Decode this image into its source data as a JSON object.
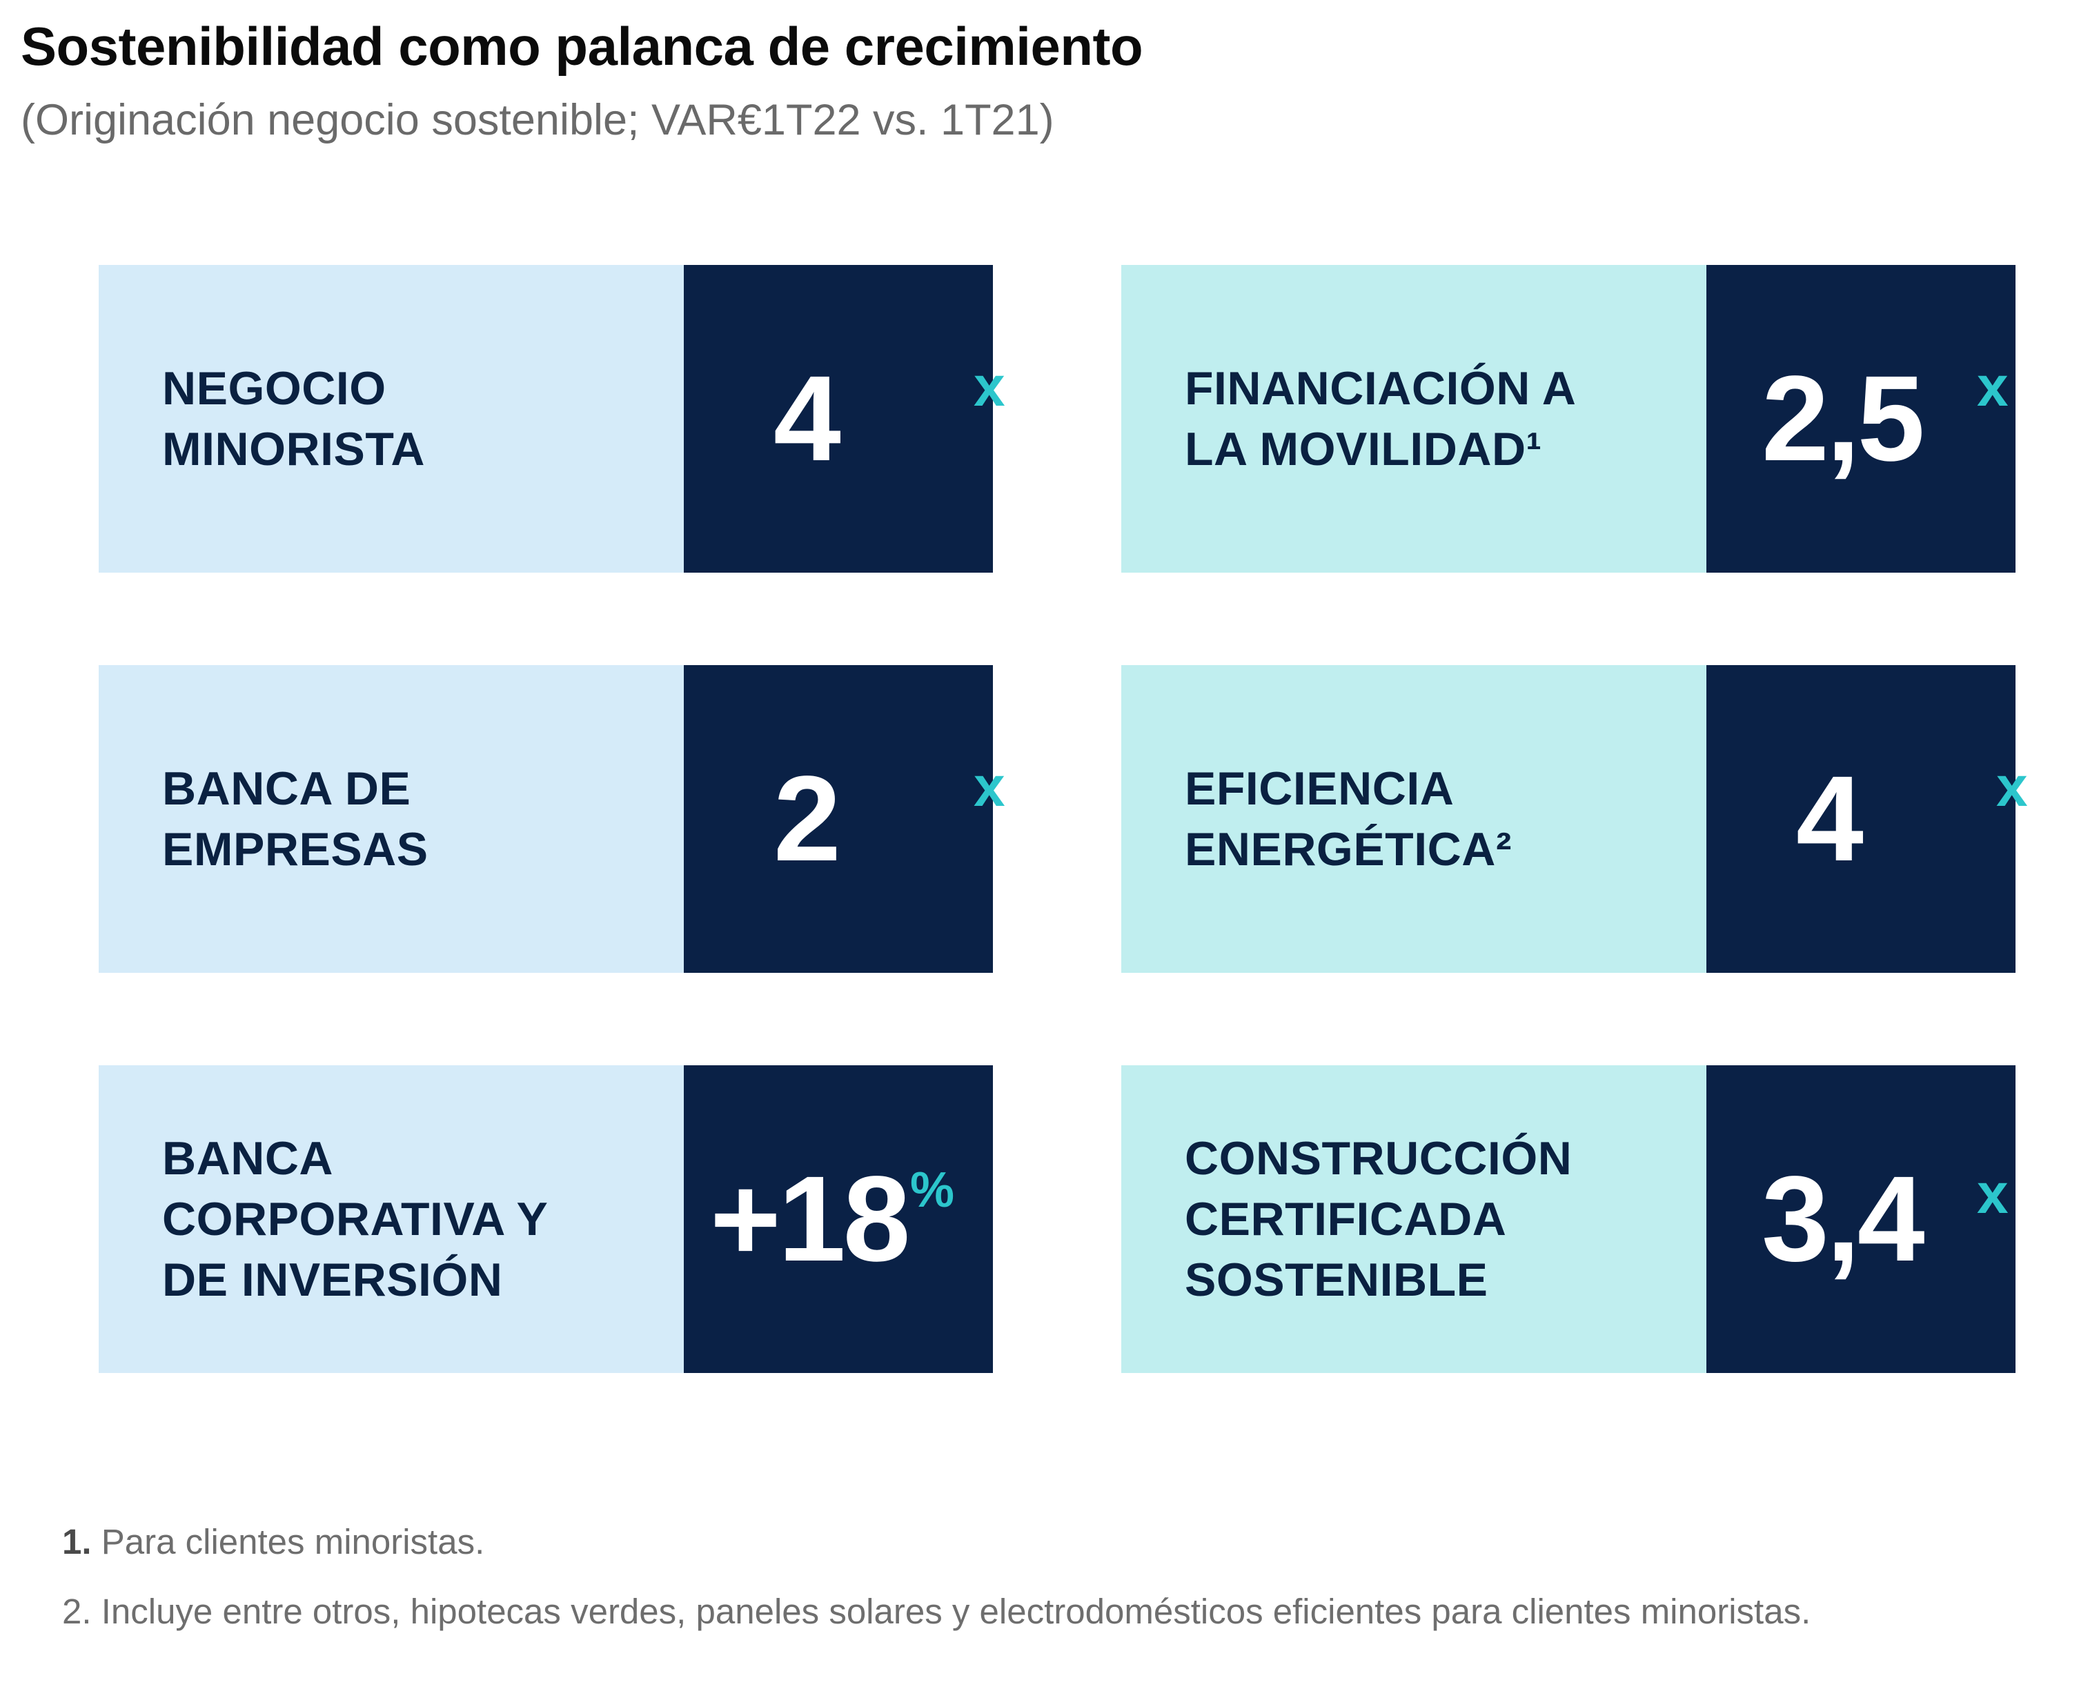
{
  "title": "Sostenibilidad como palanca de crecimiento",
  "subtitle": "(Originación negocio sostenible; VAR€1T22 vs. 1T21)",
  "chart_data": {
    "type": "table",
    "title": "Sostenibilidad como palanca de crecimiento",
    "subtitle": "(Originación negocio sostenible; VAR€1T22 vs. 1T21)",
    "rows": [
      {
        "label": "NEGOCIO\nMINORISTA",
        "value": "4",
        "unit": "x"
      },
      {
        "label": "FINANCIACIÓN A\nLA MOVILIDAD¹",
        "value": "2,5",
        "unit": "x"
      },
      {
        "label": "BANCA DE\nEMPRESAS",
        "value": "2",
        "unit": "x"
      },
      {
        "label": "EFICIENCIA\nENERGÉTICA²",
        "value": "4",
        "unit": "x"
      },
      {
        "label": "BANCA\nCORPORATIVA Y\nDE INVERSIÓN",
        "value": "+18",
        "unit": "%"
      },
      {
        "label": "CONSTRUCCIÓN\nCERTIFICADA\nSOSTENIBLE",
        "value": "3,4",
        "unit": "x"
      }
    ]
  },
  "footnotes": {
    "f1_num": "1.",
    "f1_text": " Para clientes minoristas.",
    "f2": "2. Incluye entre otros, hipotecas verdes, paneles solares y electrodomésticos eficientes para clientes minoristas."
  },
  "colors": {
    "navy": "#0a2146",
    "light_blue": "#d5ebf9",
    "light_teal": "#c0eeef",
    "accent": "#2cc6cc"
  }
}
